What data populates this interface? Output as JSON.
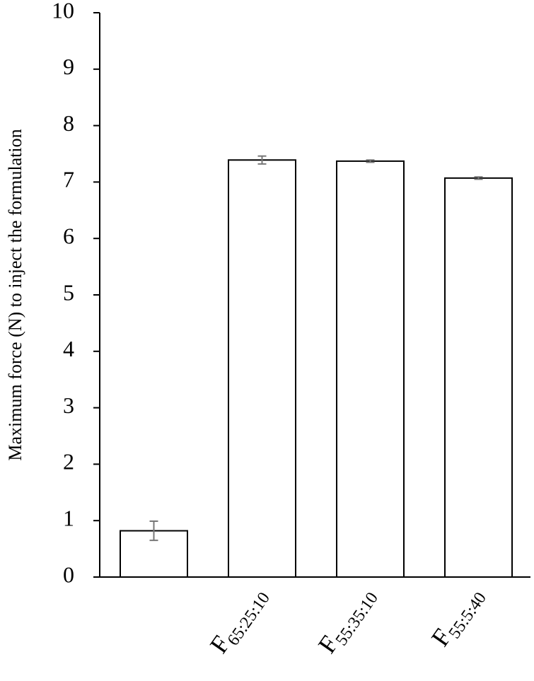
{
  "chart_data": {
    "type": "bar",
    "y_label": "Maximum force (N) to inject the formulation",
    "categories": [
      null,
      "F65:25:10",
      "F55:35:10",
      "F55:5:40"
    ],
    "values": [
      0.82,
      7.39,
      7.37,
      7.07
    ],
    "errors": [
      0.17,
      0.07,
      0.02,
      0.02
    ],
    "color": "#ffffff",
    "edge_color": "#000000",
    "error_color": "#777777",
    "ylim": [
      0,
      10
    ],
    "yticks": [
      0,
      1,
      2,
      3,
      4,
      5,
      6,
      7,
      8,
      9,
      10
    ],
    "grid": false
  }
}
